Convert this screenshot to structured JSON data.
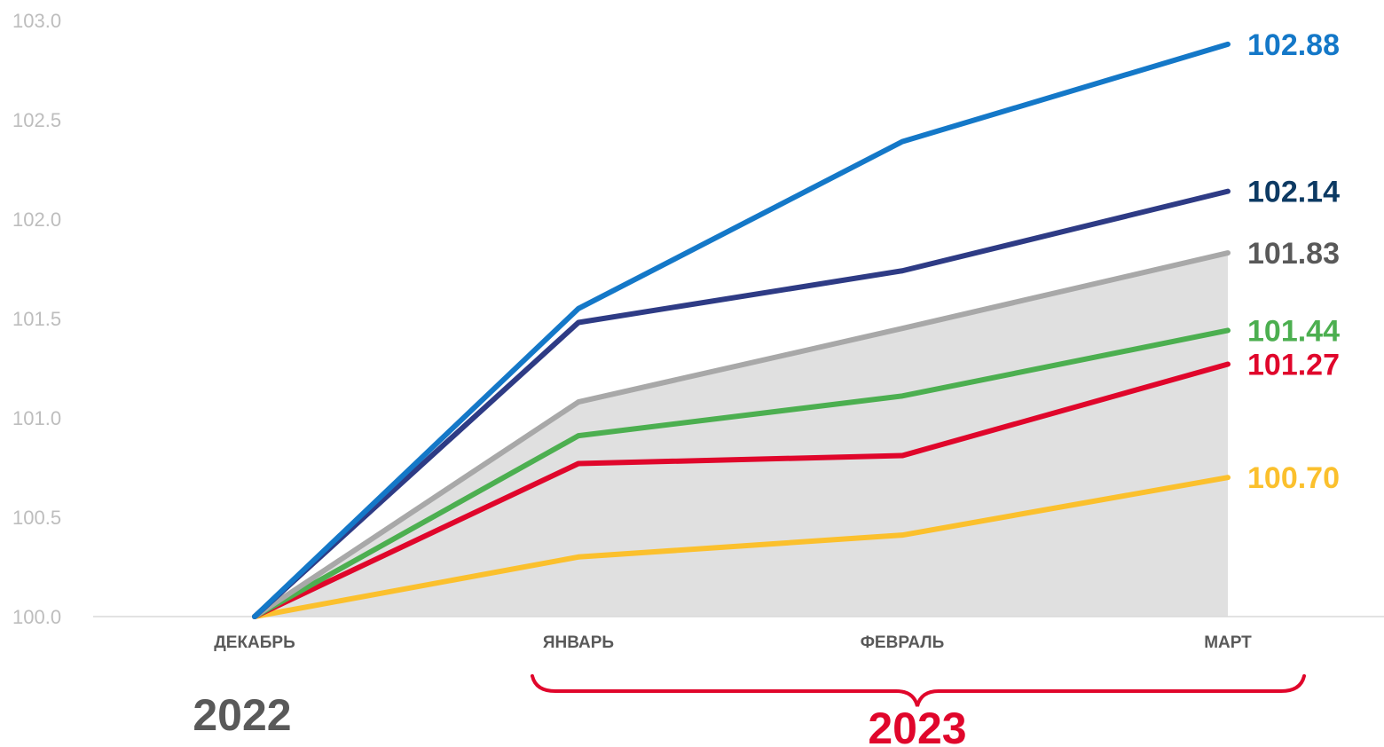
{
  "chart_data": {
    "type": "line",
    "categories": [
      "ДЕКАБРЬ",
      "ЯНВАРЬ",
      "ФЕВРАЛЬ",
      "МАРТ"
    ],
    "ylim": [
      100.0,
      103.0
    ],
    "yticks": [
      "100.0",
      "100.5",
      "101.0",
      "101.5",
      "102.0",
      "102.5",
      "103.0"
    ],
    "grid": false,
    "area": {
      "values": [
        100.0,
        101.08,
        101.45,
        101.83
      ],
      "color": "#e0e0e0"
    },
    "series": [
      {
        "values": [
          100.0,
          100.3,
          100.41,
          100.7
        ],
        "color": "#fbc02d",
        "label": "100.70",
        "label_color": "#fbc02d"
      },
      {
        "values": [
          100.0,
          100.77,
          100.81,
          101.27
        ],
        "color": "#e0062b",
        "label": "101.27",
        "label_color": "#e0062b"
      },
      {
        "values": [
          100.0,
          100.91,
          101.11,
          101.44
        ],
        "color": "#4caf50",
        "label": "101.44",
        "label_color": "#4caf50"
      },
      {
        "values": [
          100.0,
          101.08,
          101.45,
          101.83
        ],
        "color": "#a8a8a8",
        "label": "101.83",
        "label_color": "#595959"
      },
      {
        "values": [
          100.0,
          101.48,
          101.74,
          102.14
        ],
        "color": "#2e3b85",
        "label": "102.14",
        "label_color": "#0d3a63"
      },
      {
        "values": [
          100.0,
          101.55,
          102.39,
          102.88
        ],
        "color": "#1478c8",
        "label": "102.88",
        "label_color": "#1478c8"
      }
    ],
    "annotations": {
      "year_2022": {
        "text": "2022",
        "color": "#595959"
      },
      "year_2023": {
        "text": "2023",
        "color": "#e0062b"
      },
      "brace_color": "#e0062b"
    }
  }
}
